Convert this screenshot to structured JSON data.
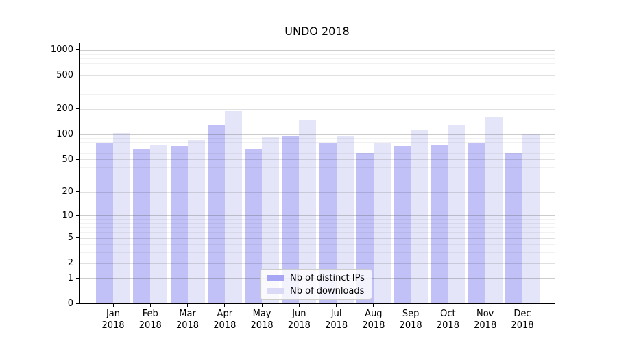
{
  "title": "UNDO 2018",
  "chart_data": {
    "type": "bar",
    "title": "UNDO 2018",
    "categories": [
      "Jan 2018",
      "Feb 2018",
      "Mar 2018",
      "Apr 2018",
      "May 2018",
      "Jun 2018",
      "Jul 2018",
      "Aug 2018",
      "Sep 2018",
      "Oct 2018",
      "Nov 2018",
      "Dec 2018"
    ],
    "series": [
      {
        "name": "Nb of distinct IPs",
        "color": "#a6a6f4",
        "values": [
          80,
          67,
          73,
          130,
          67,
          97,
          78,
          60,
          73,
          76,
          80,
          60
        ]
      },
      {
        "name": "Nb of downloads",
        "color": "#dadaf7",
        "values": [
          105,
          76,
          87,
          190,
          94,
          150,
          97,
          80,
          113,
          130,
          162,
          102
        ]
      }
    ],
    "xlabel": "",
    "ylabel": "",
    "y_scale": "log1p",
    "y_ticks": [
      0,
      1,
      2,
      5,
      10,
      20,
      50,
      100,
      200,
      500,
      1000
    ],
    "ylim": [
      0,
      1000
    ],
    "grid": "on",
    "legend_position": "lower center"
  }
}
